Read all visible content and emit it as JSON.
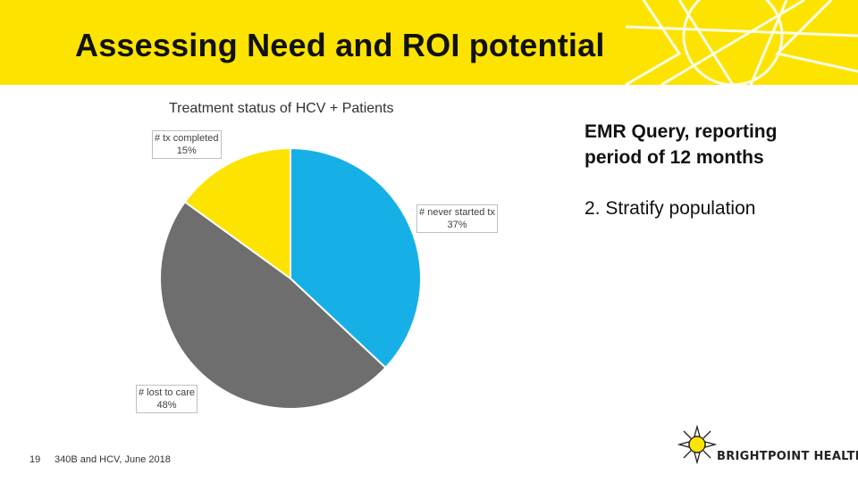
{
  "slide": {
    "title": "Assessing Need and ROI potential",
    "right_heading": "EMR Query, reporting period of 12 months",
    "right_point": "2. Stratify population",
    "footer_page": "19",
    "footer_text": "340B and HCV, June 2018",
    "logo_text": "BRIGHTPOINT HEALTH",
    "logo_icon": "sun-icon",
    "header_color": "#fce300"
  },
  "chart_data": {
    "type": "pie",
    "title": "Treatment status of HCV + Patients",
    "slices": [
      {
        "label": "# never started tx",
        "value": 37,
        "display": "37%",
        "color": "#17b0e6"
      },
      {
        "label": "# lost to care",
        "value": 48,
        "display": "48%",
        "color": "#6e6e6e"
      },
      {
        "label": "# tx completed",
        "value": 15,
        "display": "15%",
        "color": "#fce300"
      }
    ]
  }
}
